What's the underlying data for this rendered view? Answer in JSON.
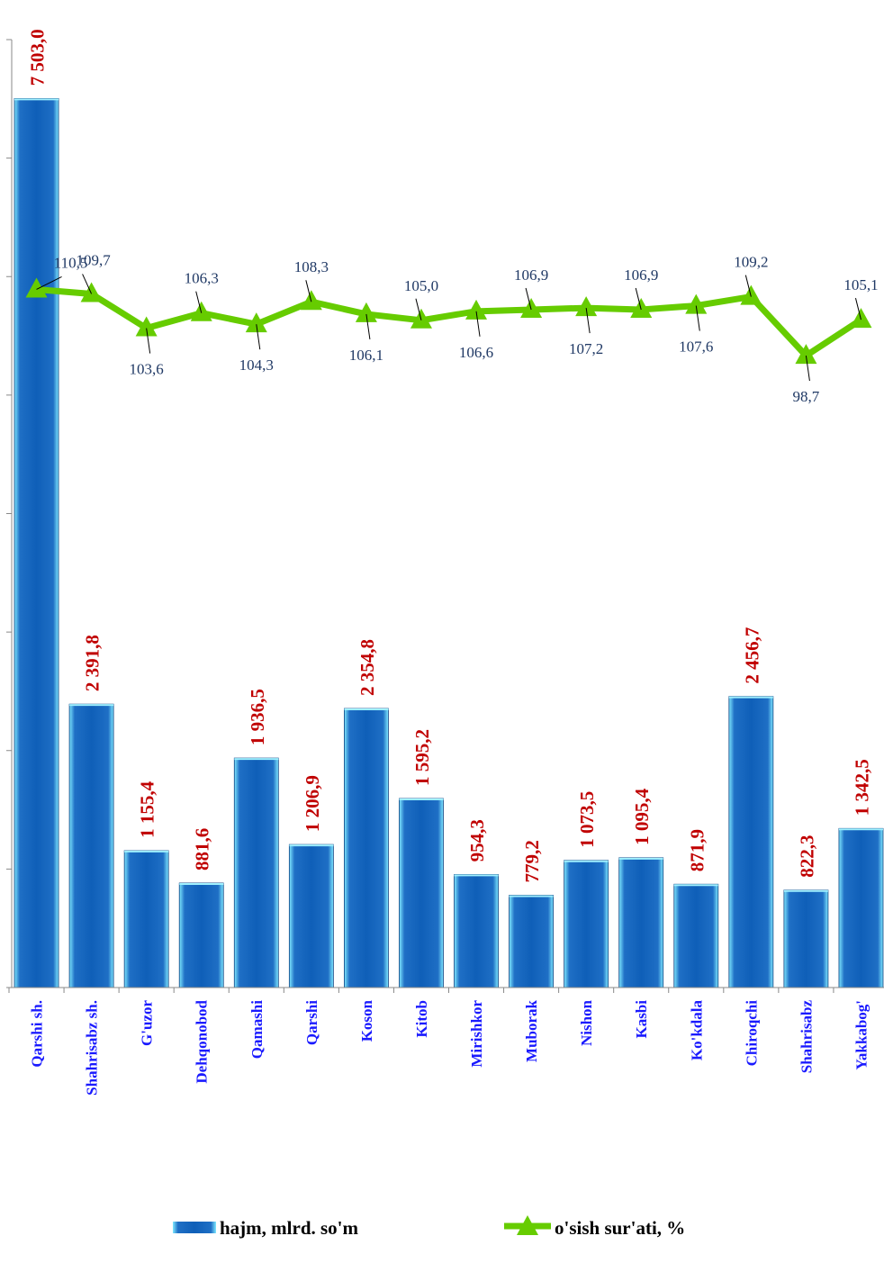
{
  "chart_data": {
    "type": "bar",
    "categories": [
      "Qarshi sh.",
      "Shahrisabz sh.",
      "G'uzor",
      "Dehqonobod",
      "Qamashi",
      "Qarshi",
      "Koson",
      "Kitob",
      "Mirishkor",
      "Muborak",
      "Nishon",
      "Kasbi",
      "Ko'kdala",
      "Chiroqchi",
      "Shahrisabz",
      "Yakkabog'"
    ],
    "series": [
      {
        "name": "hajm, mlrd. so'm",
        "type": "bar",
        "color": "#1f6fc5",
        "values": [
          7503.0,
          2391.8,
          1155.4,
          881.6,
          1936.5,
          1206.9,
          2354.8,
          1595.2,
          954.3,
          779.2,
          1073.5,
          1095.4,
          871.9,
          2456.7,
          822.3,
          1342.5
        ],
        "labels": [
          "7 503,0",
          "2 391,8",
          "1 155,4",
          "881,6",
          "1 936,5",
          "1 206,9",
          "2 354,8",
          "1 595,2",
          "954,3",
          "779,2",
          "1 073,5",
          "1 095,4",
          "871,9",
          "2 456,7",
          "822,3",
          "1 342,5"
        ]
      },
      {
        "name": "o'sish sur'ati, %",
        "type": "line",
        "color": "#66cc00",
        "values": [
          110.5,
          109.7,
          103.6,
          106.3,
          104.3,
          108.3,
          106.1,
          105.0,
          106.6,
          106.9,
          107.2,
          106.9,
          107.6,
          109.2,
          98.7,
          105.1
        ],
        "labels": [
          "110,5",
          "109,7",
          "103,6",
          "106,3",
          "104,3",
          "108,3",
          "106,1",
          "105,0",
          "106,6",
          "106,9",
          "107,2",
          "106,9",
          "107,6",
          "109,2",
          "98,7",
          "105,1"
        ]
      }
    ],
    "ylim": [
      0,
      8000
    ],
    "y_tick_step": 1000,
    "y_tick_labels_shown": false,
    "grid": false,
    "legend_position": "bottom"
  }
}
